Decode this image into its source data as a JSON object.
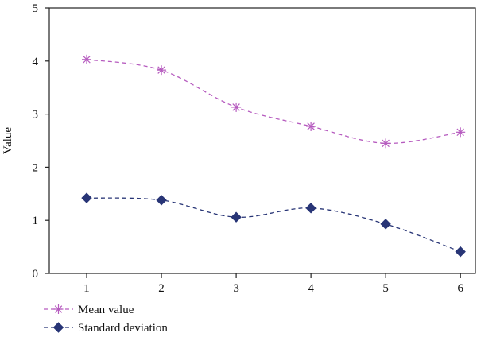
{
  "chart_data": {
    "type": "line",
    "title": "",
    "xlabel": "",
    "ylabel": "Value",
    "x": [
      1,
      2,
      3,
      4,
      5,
      6
    ],
    "x_tick_labels": [
      "1",
      "2",
      "3",
      "4",
      "5",
      "6"
    ],
    "xlim": [
      0.5,
      6.2
    ],
    "ylim": [
      0,
      5
    ],
    "y_tick_labels": [
      "0",
      "1",
      "2",
      "3",
      "4",
      "5"
    ],
    "grid": false,
    "smooth": true,
    "legend_position": "bottom-left",
    "series": [
      {
        "name": "Mean value",
        "values": [
          4.03,
          3.83,
          3.13,
          2.77,
          2.45,
          2.66
        ],
        "color": "#b65bbf",
        "marker": "asterisk",
        "line_style": "dashed"
      },
      {
        "name": "Standard deviation",
        "values": [
          1.42,
          1.38,
          1.06,
          1.23,
          0.93,
          0.41
        ],
        "color": "#283576",
        "marker": "diamond",
        "line_style": "dashed"
      }
    ]
  }
}
